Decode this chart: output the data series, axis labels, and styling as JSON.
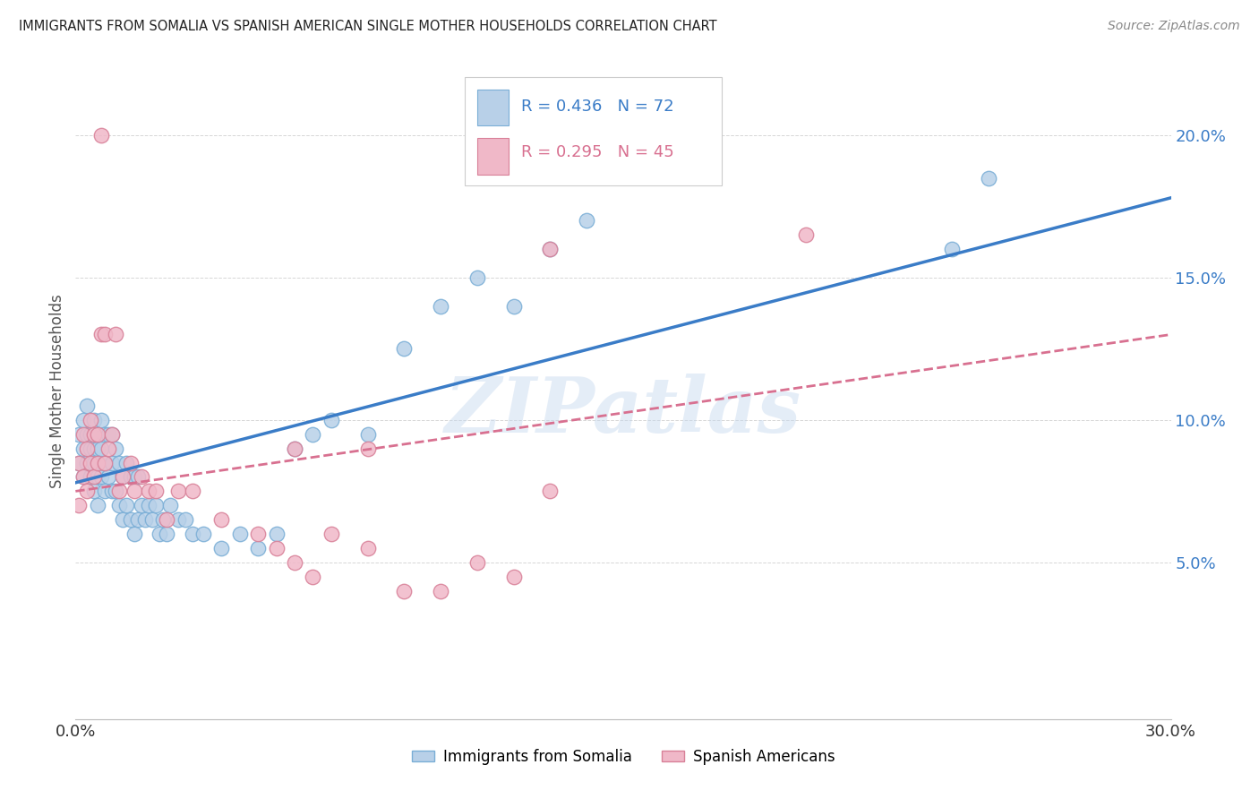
{
  "title": "IMMIGRANTS FROM SOMALIA VS SPANISH AMERICAN SINGLE MOTHER HOUSEHOLDS CORRELATION CHART",
  "source": "Source: ZipAtlas.com",
  "ylabel": "Single Mother Households",
  "xlim": [
    0,
    0.3
  ],
  "ylim": [
    -0.005,
    0.225
  ],
  "yticks": [
    0.05,
    0.1,
    0.15,
    0.2
  ],
  "ytick_labels": [
    "5.0%",
    "10.0%",
    "15.0%",
    "20.0%"
  ],
  "xticks": [
    0.0,
    0.05,
    0.1,
    0.15,
    0.2,
    0.25,
    0.3
  ],
  "xtick_labels": [
    "0.0%",
    "",
    "",
    "",
    "",
    "",
    "30.0%"
  ],
  "series_blue": {
    "R": 0.436,
    "N": 72,
    "color": "#b8d0e8",
    "edge_color": "#7aaed6",
    "line_color": "#3a7cc7",
    "label": "Immigrants from Somalia"
  },
  "series_pink": {
    "R": 0.295,
    "N": 45,
    "color": "#f0b8c8",
    "edge_color": "#d88098",
    "line_color": "#d87090",
    "label": "Spanish Americans"
  },
  "watermark": "ZIPatlas",
  "background_color": "#ffffff",
  "title_color": "#222222",
  "axis_label_color": "#3a7cc7",
  "grid_color": "#cccccc",
  "blue_trend": [
    0.078,
    0.178
  ],
  "pink_trend": [
    0.075,
    0.13
  ],
  "blue_x": [
    0.001,
    0.001,
    0.002,
    0.002,
    0.002,
    0.003,
    0.003,
    0.003,
    0.004,
    0.004,
    0.004,
    0.005,
    0.005,
    0.005,
    0.005,
    0.006,
    0.006,
    0.006,
    0.007,
    0.007,
    0.007,
    0.008,
    0.008,
    0.008,
    0.009,
    0.009,
    0.01,
    0.01,
    0.01,
    0.011,
    0.011,
    0.012,
    0.012,
    0.013,
    0.013,
    0.014,
    0.014,
    0.015,
    0.015,
    0.016,
    0.016,
    0.017,
    0.017,
    0.018,
    0.019,
    0.02,
    0.021,
    0.022,
    0.023,
    0.024,
    0.025,
    0.026,
    0.028,
    0.03,
    0.032,
    0.035,
    0.04,
    0.045,
    0.05,
    0.055,
    0.06,
    0.065,
    0.07,
    0.08,
    0.09,
    0.1,
    0.11,
    0.12,
    0.13,
    0.14,
    0.24,
    0.25
  ],
  "blue_y": [
    0.085,
    0.095,
    0.08,
    0.09,
    0.1,
    0.085,
    0.095,
    0.105,
    0.08,
    0.09,
    0.095,
    0.075,
    0.085,
    0.09,
    0.1,
    0.07,
    0.08,
    0.09,
    0.08,
    0.09,
    0.1,
    0.075,
    0.085,
    0.095,
    0.08,
    0.095,
    0.075,
    0.085,
    0.095,
    0.075,
    0.09,
    0.07,
    0.085,
    0.065,
    0.08,
    0.07,
    0.085,
    0.065,
    0.08,
    0.06,
    0.08,
    0.065,
    0.08,
    0.07,
    0.065,
    0.07,
    0.065,
    0.07,
    0.06,
    0.065,
    0.06,
    0.07,
    0.065,
    0.065,
    0.06,
    0.06,
    0.055,
    0.06,
    0.055,
    0.06,
    0.09,
    0.095,
    0.1,
    0.095,
    0.125,
    0.14,
    0.15,
    0.14,
    0.16,
    0.17,
    0.16,
    0.185
  ],
  "pink_x": [
    0.001,
    0.001,
    0.002,
    0.002,
    0.003,
    0.003,
    0.004,
    0.004,
    0.005,
    0.005,
    0.006,
    0.006,
    0.007,
    0.008,
    0.008,
    0.009,
    0.01,
    0.011,
    0.012,
    0.013,
    0.015,
    0.016,
    0.018,
    0.02,
    0.022,
    0.025,
    0.028,
    0.032,
    0.04,
    0.05,
    0.055,
    0.06,
    0.065,
    0.07,
    0.08,
    0.09,
    0.1,
    0.11,
    0.12,
    0.13,
    0.007,
    0.06,
    0.08,
    0.13,
    0.2
  ],
  "pink_y": [
    0.07,
    0.085,
    0.08,
    0.095,
    0.075,
    0.09,
    0.085,
    0.1,
    0.08,
    0.095,
    0.085,
    0.095,
    0.13,
    0.085,
    0.13,
    0.09,
    0.095,
    0.13,
    0.075,
    0.08,
    0.085,
    0.075,
    0.08,
    0.075,
    0.075,
    0.065,
    0.075,
    0.075,
    0.065,
    0.06,
    0.055,
    0.05,
    0.045,
    0.06,
    0.055,
    0.04,
    0.04,
    0.05,
    0.045,
    0.075,
    0.2,
    0.09,
    0.09,
    0.16,
    0.165
  ]
}
